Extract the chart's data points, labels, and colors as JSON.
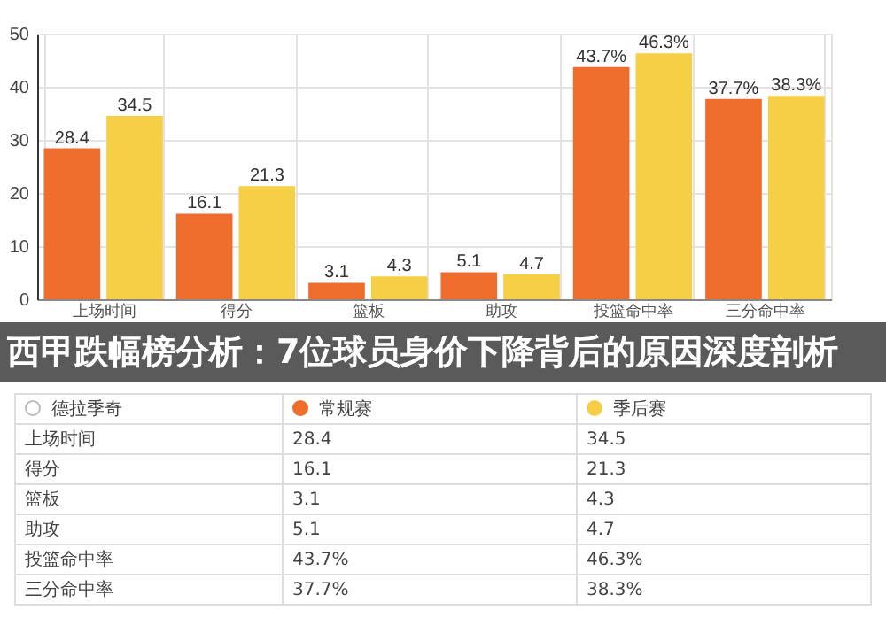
{
  "chart_data": {
    "type": "bar",
    "title": "西甲跌幅榜分析：7位球员身价下降背后的原因深度剖析",
    "legend_title": "德拉季奇",
    "categories": [
      "上场时间",
      "得分",
      "篮板",
      "助攻",
      "投篮命中率",
      "三分命中率"
    ],
    "series": [
      {
        "name": "常规赛",
        "color": "#ee6d2d",
        "values": [
          28.4,
          16.1,
          3.1,
          5.1,
          43.7,
          37.7
        ],
        "value_labels": [
          "28.4",
          "16.1",
          "3.1",
          "5.1",
          "43.7%",
          "37.7%"
        ]
      },
      {
        "name": "季后赛",
        "color": "#f6cf47",
        "values": [
          34.5,
          21.3,
          4.3,
          4.7,
          46.3,
          38.3
        ],
        "value_labels": [
          "34.5",
          "21.3",
          "4.3",
          "4.7",
          "46.3%",
          "38.3%"
        ]
      }
    ],
    "ylim": [
      0,
      50
    ],
    "yticks": [
      0,
      10,
      20,
      30,
      40,
      50
    ],
    "grid": true,
    "legend": "bottom"
  }
}
